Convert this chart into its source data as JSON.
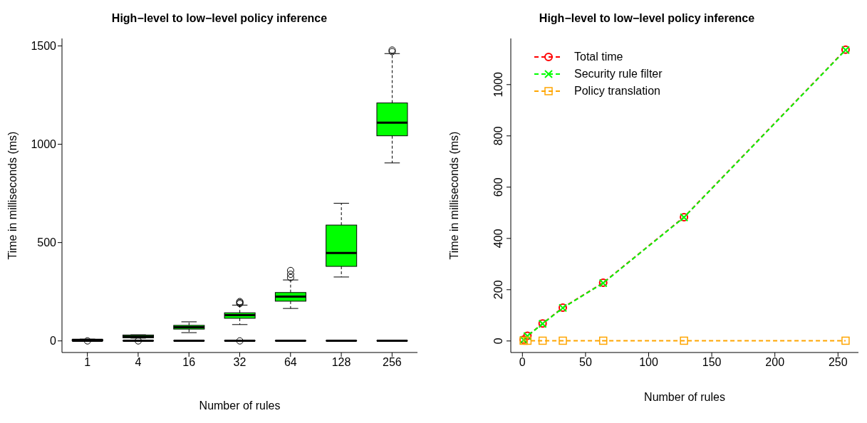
{
  "chart_data": [
    {
      "type": "box",
      "title": "High−level to low−level policy inference",
      "xlabel": "Number of rules",
      "ylabel": "Time in milliseconds (ms)",
      "categories": [
        "1",
        "4",
        "16",
        "32",
        "64",
        "128",
        "256"
      ],
      "series": [
        {
          "color": "#00ff00",
          "boxes": [
            {
              "low": 2,
              "q1": 4,
              "median": 5,
              "q3": 7,
              "high": 9
            },
            {
              "low": 14,
              "q1": 16,
              "median": 22,
              "q3": 30,
              "high": 31
            },
            {
              "low": 42,
              "q1": 60,
              "median": 70,
              "q3": 79,
              "high": 97
            },
            {
              "low": 83,
              "q1": 115,
              "median": 131,
              "q3": 143,
              "high": 182,
              "outliers": [
                190,
                195,
                200
              ]
            },
            {
              "low": 165,
              "q1": 202,
              "median": 225,
              "q3": 246,
              "high": 310,
              "outliers": [
                322,
                339,
                358
              ]
            },
            {
              "low": 325,
              "q1": 379,
              "median": 447,
              "q3": 589,
              "high": 700
            },
            {
              "low": 905,
              "q1": 1043,
              "median": 1110,
              "q3": 1210,
              "high": 1461,
              "outliers": [
                1471,
                1479
              ]
            }
          ]
        },
        {
          "color": "#000000",
          "boxes": [
            {
              "low": 0.5,
              "q1": 0.8,
              "median": 1,
              "q3": 1.2,
              "high": 1.5,
              "outliers": [
                0
              ]
            },
            {
              "low": 0.5,
              "q1": 0.8,
              "median": 1,
              "q3": 1.2,
              "high": 1.5,
              "outliers": [
                0
              ]
            },
            {
              "low": 0.5,
              "q1": 0.8,
              "median": 1,
              "q3": 1.2,
              "high": 1.5
            },
            {
              "low": 0.5,
              "q1": 0.8,
              "median": 1,
              "q3": 1.2,
              "high": 1.5,
              "outliers": [
                0
              ]
            },
            {
              "low": 0.5,
              "q1": 0.8,
              "median": 1,
              "q3": 1.2,
              "high": 1.5
            },
            {
              "low": 0.5,
              "q1": 0.8,
              "median": 1,
              "q3": 1.2,
              "high": 1.5
            },
            {
              "low": 0.5,
              "q1": 0.8,
              "median": 1,
              "q3": 1.2,
              "high": 1.5
            }
          ]
        }
      ],
      "ylim": [
        -59,
        1538
      ],
      "yticks": [
        0,
        500,
        1000,
        1500
      ],
      "grid": false
    },
    {
      "type": "line",
      "title": "High−level to low−level policy inference",
      "xlabel": "Number of rules",
      "ylabel": "Time in milliseconds (ms)",
      "x": [
        1,
        4,
        16,
        32,
        64,
        128,
        256
      ],
      "series": [
        {
          "name": "Total time",
          "color": "#ff0000",
          "values": [
            5,
            20,
            68,
            130,
            227,
            483,
            1136
          ],
          "marker": "circle",
          "line_style": "dashed"
        },
        {
          "name": "Security rule filter",
          "color": "#00ff00",
          "values": [
            4,
            19,
            67,
            129,
            226,
            482,
            1135
          ],
          "marker": "cross",
          "line_style": "dashed"
        },
        {
          "name": "Policy translation",
          "color": "#ffa500",
          "values": [
            1,
            1,
            1,
            1,
            1,
            1,
            1
          ],
          "marker": "square",
          "line_style": "dashed"
        }
      ],
      "xlim": [
        -9.2,
        266.2
      ],
      "xticks": [
        0,
        50,
        100,
        150,
        200,
        250
      ],
      "ylim": [
        -45,
        1180
      ],
      "yticks": [
        0,
        200,
        400,
        600,
        800,
        1000
      ],
      "legend": "top left",
      "grid": false
    }
  ]
}
